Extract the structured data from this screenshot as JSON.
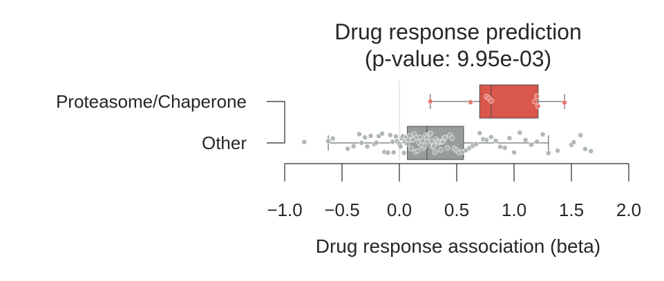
{
  "chart_data": {
    "type": "box",
    "title": "Drug response prediction",
    "subtitle": "(p-value: 9.95e-03)",
    "xlabel": "Drug response association (beta)",
    "ylabel": "",
    "xlim": [
      -1.0,
      2.0
    ],
    "xticks": [
      -1.0,
      -0.5,
      0.0,
      0.5,
      1.0,
      1.5,
      2.0
    ],
    "xtick_labels": [
      "−1.0",
      "−0.5",
      "0.0",
      "0.5",
      "1.0",
      "1.5",
      "2.0"
    ],
    "reference_line_x": 0.0,
    "bracket": "Proteasome/Chaperone vs Other",
    "categories": [
      "Proteasome/Chaperone",
      "Other"
    ],
    "colors": {
      "Proteasome/Chaperone": "#d9574b",
      "Other": "#969d9c"
    },
    "series": [
      {
        "name": "Proteasome/Chaperone",
        "box": {
          "q1": 0.7,
          "median": 0.8,
          "q3": 1.21,
          "whisker_low": 0.27,
          "whisker_high": 1.44
        },
        "points": [
          0.27,
          0.62,
          0.76,
          0.78,
          0.8,
          1.18,
          1.2,
          1.21,
          1.44
        ]
      },
      {
        "name": "Other",
        "box": {
          "q1": 0.07,
          "median": 0.24,
          "q3": 0.56,
          "whisker_low": -0.62,
          "whisker_high": 1.3
        },
        "outliers": [
          -0.83,
          1.38,
          1.5,
          1.52,
          1.58,
          1.62,
          1.67
        ],
        "points": [
          -0.62,
          -0.58,
          -0.45,
          -0.4,
          -0.35,
          -0.33,
          -0.3,
          -0.28,
          -0.25,
          -0.22,
          -0.2,
          -0.18,
          -0.15,
          -0.13,
          -0.1,
          -0.08,
          -0.06,
          -0.05,
          -0.03,
          -0.02,
          0.0,
          0.01,
          0.02,
          0.03,
          0.04,
          0.05,
          0.06,
          0.07,
          0.08,
          0.09,
          0.1,
          0.11,
          0.12,
          0.13,
          0.14,
          0.15,
          0.16,
          0.17,
          0.18,
          0.19,
          0.2,
          0.21,
          0.22,
          0.23,
          0.24,
          0.25,
          0.26,
          0.27,
          0.28,
          0.29,
          0.3,
          0.31,
          0.32,
          0.33,
          0.34,
          0.35,
          0.36,
          0.37,
          0.38,
          0.39,
          0.4,
          0.42,
          0.44,
          0.46,
          0.48,
          0.5,
          0.52,
          0.55,
          0.58,
          0.61,
          0.64,
          0.67,
          0.7,
          0.73,
          0.76,
          0.8,
          0.84,
          0.88,
          0.92,
          0.96,
          1.0,
          1.05,
          1.1,
          1.15,
          1.2,
          1.25,
          1.3
        ]
      }
    ]
  }
}
